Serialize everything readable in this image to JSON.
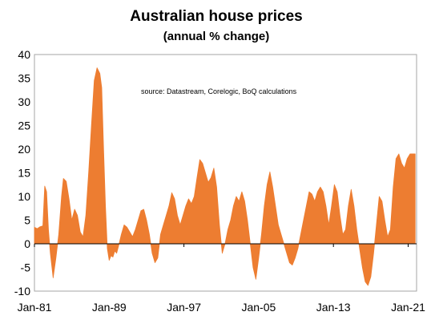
{
  "chart_data": {
    "type": "area",
    "title": "Australian house prices",
    "subtitle": "(annual % change)",
    "annotation": "source:  Datastream, Corelogic, BoQ calculations",
    "xlabel": "",
    "ylabel": "",
    "ylim": [
      -10,
      40
    ],
    "yticks": [
      40,
      35,
      30,
      25,
      20,
      15,
      10,
      5,
      0,
      -5,
      -10
    ],
    "xlim": [
      1981.0,
      2021.9
    ],
    "xticks": [
      {
        "label": "Jan-81",
        "value": 1981.0
      },
      {
        "label": "Jan-89",
        "value": 1989.0
      },
      {
        "label": "Jan-97",
        "value": 1997.0
      },
      {
        "label": "Jan-05",
        "value": 2005.0
      },
      {
        "label": "Jan-13",
        "value": 2013.0
      },
      {
        "label": "Jan-21",
        "value": 2021.0
      }
    ],
    "grid": false,
    "legend": "none",
    "series": [
      {
        "color": "#ed7d31",
        "x": [
          1981.0,
          1981.3,
          1981.6,
          1981.9,
          1982.1,
          1982.3,
          1982.5,
          1982.7,
          1983.0,
          1983.3,
          1983.6,
          1983.9,
          1984.1,
          1984.4,
          1984.7,
          1985.0,
          1985.3,
          1985.6,
          1985.9,
          1986.2,
          1986.5,
          1986.8,
          1987.1,
          1987.4,
          1987.7,
          1988.0,
          1988.2,
          1988.4,
          1988.6,
          1988.8,
          1989.0,
          1989.2,
          1989.4,
          1989.6,
          1989.8,
          1990.0,
          1990.3,
          1990.6,
          1990.9,
          1991.2,
          1991.5,
          1991.8,
          1992.1,
          1992.4,
          1992.7,
          1993.0,
          1993.3,
          1993.6,
          1993.9,
          1994.2,
          1994.5,
          1994.8,
          1995.1,
          1995.4,
          1995.7,
          1996.0,
          1996.3,
          1996.6,
          1996.9,
          1997.2,
          1997.5,
          1997.8,
          1998.1,
          1998.4,
          1998.7,
          1999.0,
          1999.3,
          1999.6,
          1999.9,
          2000.2,
          2000.5,
          2000.8,
          2001.1,
          2001.4,
          2001.7,
          2002.0,
          2002.3,
          2002.6,
          2002.9,
          2003.2,
          2003.5,
          2003.8,
          2004.1,
          2004.4,
          2004.7,
          2005.0,
          2005.3,
          2005.6,
          2005.9,
          2006.2,
          2006.5,
          2006.8,
          2007.1,
          2007.4,
          2007.7,
          2008.0,
          2008.3,
          2008.6,
          2008.9,
          2009.2,
          2009.5,
          2009.8,
          2010.1,
          2010.4,
          2010.7,
          2011.0,
          2011.3,
          2011.6,
          2011.9,
          2012.2,
          2012.5,
          2012.8,
          2013.1,
          2013.4,
          2013.7,
          2014.0,
          2014.3,
          2014.6,
          2014.9,
          2015.2,
          2015.5,
          2015.8,
          2016.1,
          2016.4,
          2016.7,
          2017.0,
          2017.3,
          2017.6,
          2017.9,
          2018.2,
          2018.5,
          2018.8,
          2019.1,
          2019.4,
          2019.7,
          2020.0,
          2020.3,
          2020.6,
          2020.9,
          2021.2,
          2021.5,
          2021.75
        ],
        "values": [
          3.5,
          3.2,
          3.6,
          3.8,
          12.2,
          11.0,
          3.0,
          -2.0,
          -7.2,
          -3.0,
          2.0,
          10.0,
          13.8,
          13.2,
          9.5,
          5.0,
          7.3,
          6.0,
          2.5,
          1.5,
          6.0,
          15.0,
          25.0,
          34.5,
          37.2,
          36.0,
          33.0,
          20.0,
          8.0,
          -1.0,
          -3.5,
          -2.5,
          -2.8,
          -1.5,
          -2.0,
          -0.5,
          2.0,
          4.0,
          3.5,
          2.5,
          1.5,
          3.0,
          5.0,
          7.0,
          7.3,
          5.0,
          2.0,
          -2.0,
          -4.0,
          -3.0,
          2.0,
          4.0,
          6.0,
          8.0,
          10.8,
          9.5,
          6.0,
          4.0,
          6.0,
          8.0,
          9.5,
          8.5,
          10.0,
          14.0,
          17.8,
          17.0,
          15.0,
          13.0,
          14.0,
          16.0,
          12.0,
          4.0,
          -2.0,
          0.0,
          3.0,
          5.0,
          8.0,
          10.0,
          9.0,
          11.0,
          9.0,
          5.0,
          0.0,
          -5.0,
          -7.5,
          -3.0,
          2.0,
          8.0,
          12.5,
          15.2,
          12.0,
          8.0,
          4.0,
          2.0,
          0.0,
          -2.0,
          -4.0,
          -4.5,
          -3.0,
          -1.0,
          2.0,
          5.0,
          8.0,
          11.0,
          10.5,
          9.0,
          11.0,
          12.0,
          11.0,
          8.0,
          4.0,
          8.0,
          12.5,
          11.0,
          6.0,
          2.0,
          3.0,
          8.0,
          11.5,
          8.0,
          3.0,
          -1.0,
          -5.0,
          -8.0,
          -8.8,
          -7.0,
          -2.0,
          4.0,
          10.0,
          9.0,
          5.0,
          1.5,
          3.0,
          12.0,
          18.0,
          19.0,
          17.0,
          16.0,
          18.0,
          19.0,
          19.0,
          19.0
        ]
      }
    ]
  }
}
